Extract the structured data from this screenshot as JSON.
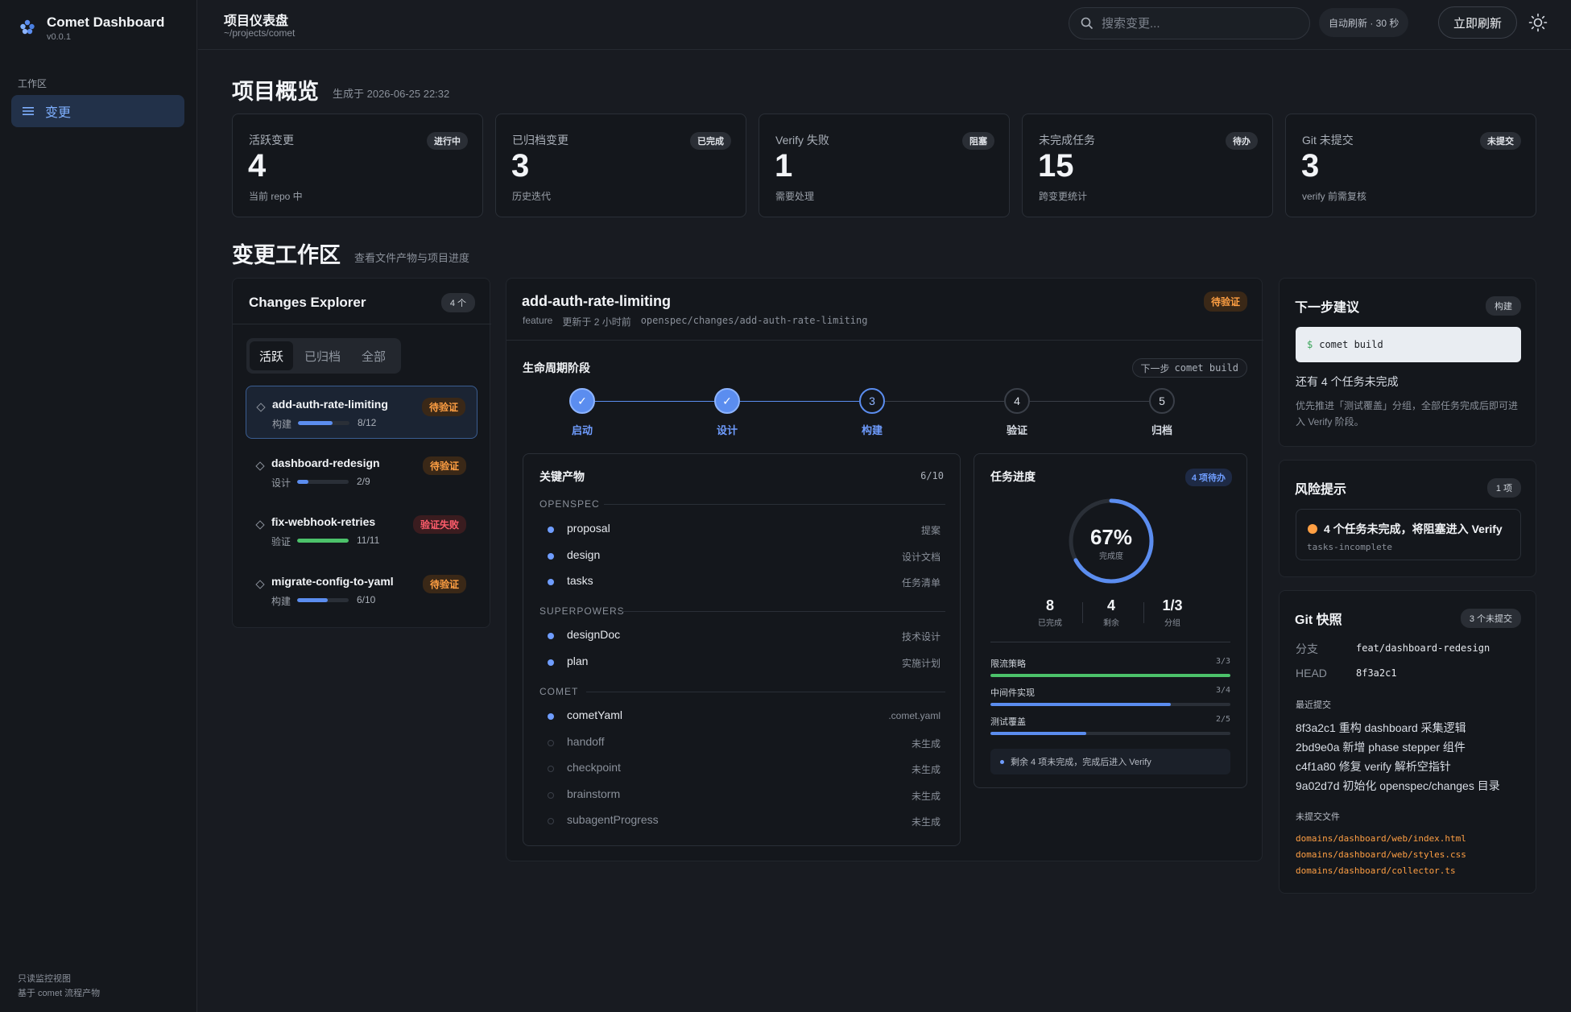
{
  "sidebar": {
    "brand_title": "Comet Dashboard",
    "brand_version": "v0.0.1",
    "section_label": "工作区",
    "nav_item": "变更",
    "footer_line1": "只读监控视图",
    "footer_line2": "基于 comet 流程产物"
  },
  "topbar": {
    "title": "项目仪表盘",
    "path": "~/projects/comet",
    "search_placeholder": "搜索变更...",
    "auto_refresh": "自动刷新 · 30 秒",
    "refresh_label": "立即刷新"
  },
  "overview": {
    "title": "项目概览",
    "generated": "生成于 2026-06-25 22:32",
    "cards": [
      {
        "label": "活跃变更",
        "badge": "进行中",
        "value": "4",
        "sub": "当前 repo 中"
      },
      {
        "label": "已归档变更",
        "badge": "已完成",
        "value": "3",
        "sub": "历史迭代"
      },
      {
        "label": "Verify 失败",
        "badge": "阻塞",
        "value": "1",
        "sub": "需要处理"
      },
      {
        "label": "未完成任务",
        "badge": "待办",
        "value": "15",
        "sub": "跨变更统计"
      },
      {
        "label": "Git 未提交",
        "badge": "未提交",
        "value": "3",
        "sub": "verify 前需复核"
      }
    ]
  },
  "workspace": {
    "title": "变更工作区",
    "subtitle": "查看文件产物与项目进度"
  },
  "explorer": {
    "title": "Changes Explorer",
    "count": "4 个",
    "tabs": [
      "活跃",
      "已归档",
      "全部"
    ],
    "items": [
      {
        "name": "add-auth-rate-limiting",
        "badge": "待验证",
        "phase": "构建",
        "progress": "8/12",
        "ratio": 0.667,
        "color": "#5b8def"
      },
      {
        "name": "dashboard-redesign",
        "badge": "待验证",
        "phase": "设计",
        "progress": "2/9",
        "ratio": 0.222,
        "color": "#5b8def"
      },
      {
        "name": "fix-webhook-retries",
        "badge": "验证失败",
        "phase": "验证",
        "progress": "11/11",
        "ratio": 1.0,
        "color": "#4cc26a"
      },
      {
        "name": "migrate-config-to-yaml",
        "badge": "待验证",
        "phase": "构建",
        "progress": "6/10",
        "ratio": 0.6,
        "color": "#5b8def"
      }
    ]
  },
  "detail": {
    "title": "add-auth-rate-limiting",
    "type": "feature",
    "updated": "更新于 2 小时前",
    "path": "openspec/changes/add-auth-rate-limiting",
    "badge": "待验证",
    "lifecycle_title": "生命周期阶段",
    "next_label": "下一步",
    "next_cmd": "comet build",
    "steps": [
      {
        "num": "✓",
        "label": "启动",
        "state": "done"
      },
      {
        "num": "✓",
        "label": "设计",
        "state": "done"
      },
      {
        "num": "3",
        "label": "构建",
        "state": "current"
      },
      {
        "num": "4",
        "label": "验证",
        "state": "todo"
      },
      {
        "num": "5",
        "label": "归档",
        "state": "todo"
      }
    ],
    "artifacts": {
      "title": "关键产物",
      "count": "6/10",
      "groups": [
        {
          "name": "OPENSPEC",
          "items": [
            {
              "name": "proposal",
              "desc": "提案",
              "present": true
            },
            {
              "name": "design",
              "desc": "设计文档",
              "present": true
            },
            {
              "name": "tasks",
              "desc": "任务清单",
              "present": true
            }
          ]
        },
        {
          "name": "SUPERPOWERS",
          "items": [
            {
              "name": "designDoc",
              "desc": "技术设计",
              "present": true
            },
            {
              "name": "plan",
              "desc": "实施计划",
              "present": true
            }
          ]
        },
        {
          "name": "COMET",
          "items": [
            {
              "name": "cometYaml",
              "desc": ".comet.yaml",
              "present": true
            },
            {
              "name": "handoff",
              "desc": "未生成",
              "present": false
            },
            {
              "name": "checkpoint",
              "desc": "未生成",
              "present": false
            },
            {
              "name": "brainstorm",
              "desc": "未生成",
              "present": false
            },
            {
              "name": "subagentProgress",
              "desc": "未生成",
              "present": false
            }
          ]
        }
      ]
    },
    "tasks": {
      "title": "任务进度",
      "badge": "4 项待办",
      "percent": "67%",
      "percent_value": 0.67,
      "percent_label": "完成度",
      "done": "8",
      "done_label": "已完成",
      "remaining": "4",
      "remaining_label": "剩余",
      "groups": "1/3",
      "groups_label": "分组",
      "bars": [
        {
          "label": "限流策略",
          "count": "3/3",
          "ratio": 1.0,
          "color": "#4cc26a"
        },
        {
          "label": "中间件实现",
          "count": "3/4",
          "ratio": 0.75,
          "color": "#5b8def"
        },
        {
          "label": "测试覆盖",
          "count": "2/5",
          "ratio": 0.4,
          "color": "#5b8def"
        }
      ],
      "note": "剩余 4 项未完成，完成后进入 Verify"
    }
  },
  "next_step": {
    "title": "下一步建议",
    "badge": "构建",
    "cmd": "comet build",
    "headline": "还有 4 个任务未完成",
    "desc": "优先推进「测试覆盖」分组，全部任务完成后即可进入 Verify 阶段。"
  },
  "risk": {
    "title": "风险提示",
    "count": "1 项",
    "message": "4 个任务未完成，将阻塞进入 Verify",
    "code": "tasks-incomplete"
  },
  "git": {
    "title": "Git 快照",
    "badge": "3 个未提交",
    "branch_label": "分支",
    "branch": "feat/dashboard-redesign",
    "head_label": "HEAD",
    "head": "8f3a2c1",
    "commits_label": "最近提交",
    "commits": [
      "8f3a2c1 重构 dashboard 采集逻辑",
      "2bd9e0a 新增 phase stepper 组件",
      "c4f1a80 修复 verify 解析空指针",
      "9a02d7d 初始化 openspec/changes 目录"
    ],
    "files_label": "未提交文件",
    "files": [
      "domains/dashboard/web/index.html",
      "domains/dashboard/web/styles.css",
      "domains/dashboard/collector.ts"
    ]
  }
}
